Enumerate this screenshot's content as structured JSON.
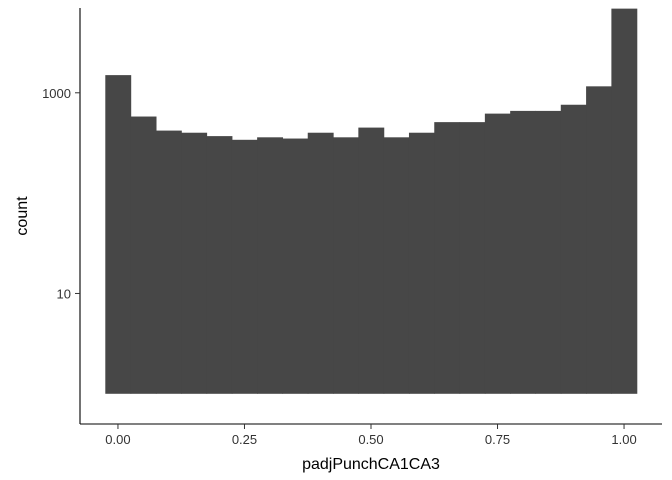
{
  "chart_data": {
    "type": "bar",
    "subtype": "histogram",
    "title": "",
    "xlabel": "padjPunchCA1CA3",
    "ylabel": "count",
    "y_scale": "log10",
    "bar_color": "#474747",
    "background": "#ffffff",
    "grid": false,
    "legend": "none",
    "xlim": [
      -0.075,
      1.075
    ],
    "ylim": [
      0.5,
      7000
    ],
    "bin_width": 0.05,
    "x": [
      0.0,
      0.05,
      0.1,
      0.15,
      0.2,
      0.25,
      0.3,
      0.35,
      0.4,
      0.45,
      0.5,
      0.55,
      0.6,
      0.65,
      0.7,
      0.75,
      0.8,
      0.85,
      0.9,
      0.95,
      1.0
    ],
    "values": [
      1500,
      580,
      420,
      400,
      370,
      340,
      360,
      350,
      400,
      360,
      450,
      360,
      400,
      510,
      510,
      620,
      660,
      660,
      760,
      1160,
      6900
    ],
    "bar_base": 1,
    "x_ticks": [
      0.0,
      0.25,
      0.5,
      0.75,
      1.0
    ],
    "x_tick_labels": [
      "0.00",
      "0.25",
      "0.50",
      "0.75",
      "1.00"
    ],
    "y_ticks": [
      10,
      1000
    ],
    "y_tick_labels": [
      "10",
      "1000"
    ]
  }
}
